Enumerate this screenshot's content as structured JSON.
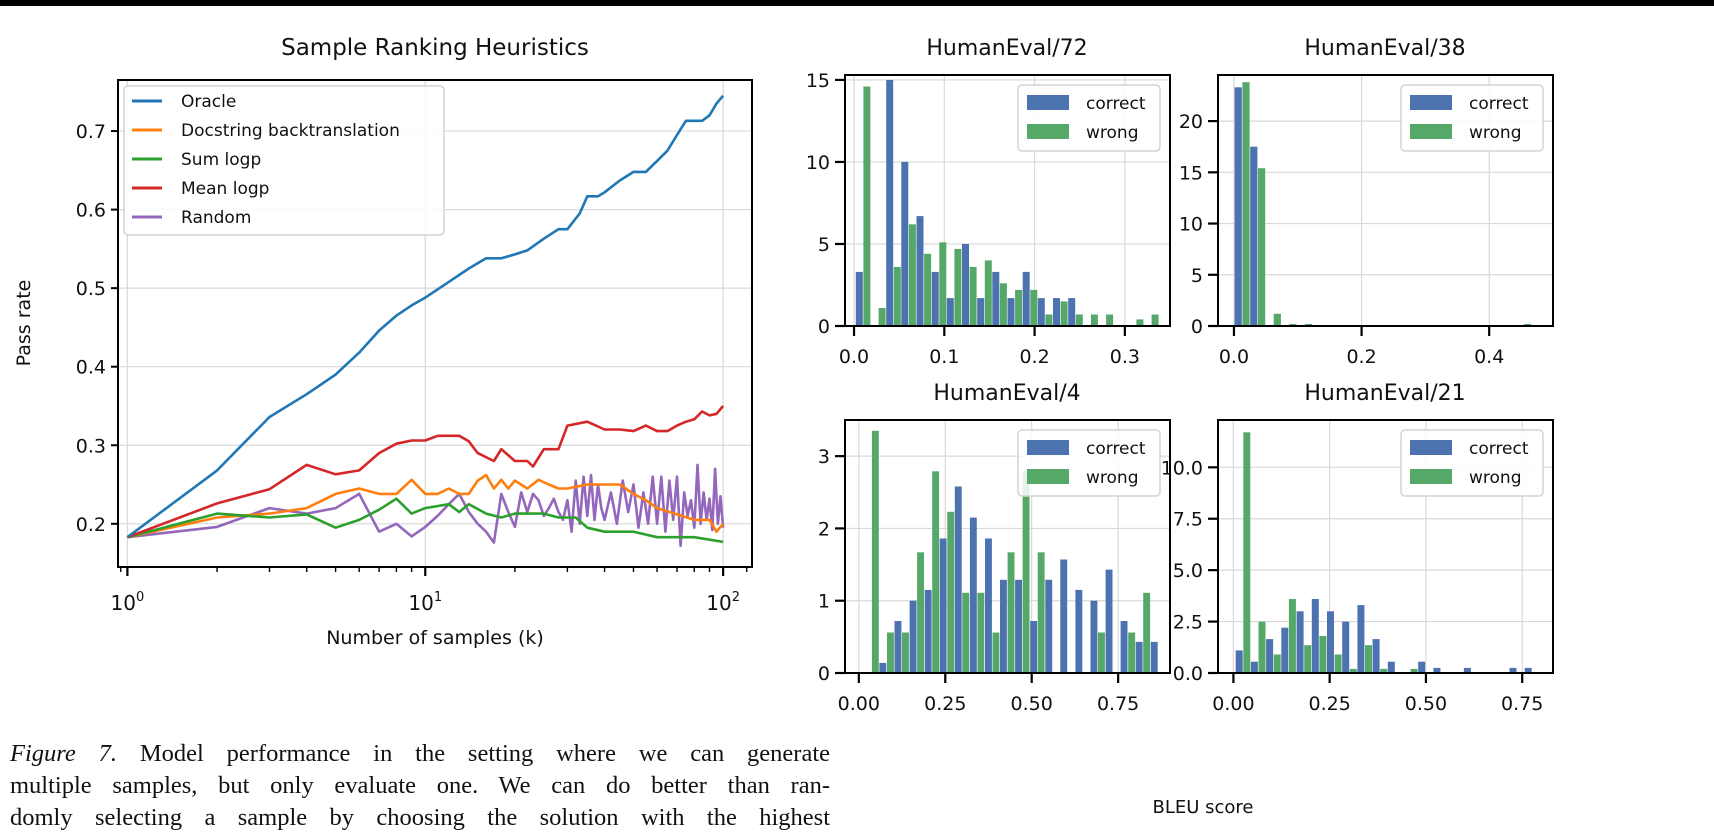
{
  "caption": {
    "label": "Figure 7.",
    "line1": "Model performance in the setting where we can generate",
    "line2": "multiple samples, but only evaluate one. We can do better than ran-",
    "line3": "domly selecting a sample by choosing the solution with the highest"
  },
  "shared_xlabel": "BLEU score",
  "colors": {
    "oracle": "#1f77b4",
    "docstring": "#ff7f0e",
    "sum_logp": "#2ca02c",
    "mean_logp": "#d62728",
    "random": "#9467bd",
    "correct": "#4c72b0",
    "wrong": "#55a868"
  },
  "chart_data": [
    {
      "id": "ranking",
      "type": "line",
      "title": "Sample Ranking Heuristics",
      "xlabel": "Number of samples (k)",
      "ylabel": "Pass rate",
      "xscale": "log",
      "xlim": [
        0.93,
        125
      ],
      "ylim": [
        0.145,
        0.765
      ],
      "xticks": [
        {
          "value": 1,
          "base": "10",
          "exp": "0"
        },
        {
          "value": 10,
          "base": "10",
          "exp": "1"
        },
        {
          "value": 100,
          "base": "10",
          "exp": "2"
        }
      ],
      "yticks": [
        0.2,
        0.3,
        0.4,
        0.5,
        0.6,
        0.7
      ],
      "ytick_labels": [
        "0.2",
        "0.3",
        "0.4",
        "0.5",
        "0.6",
        "0.7"
      ],
      "grid": true,
      "legend_position": "upper-left",
      "series": [
        {
          "name": "Oracle",
          "color_key": "oracle",
          "x": [
            1,
            2,
            3,
            4,
            5,
            6,
            7,
            8,
            9,
            10,
            12,
            14,
            16,
            18,
            20,
            22,
            25,
            28,
            30,
            33,
            35,
            38,
            40,
            45,
            50,
            55,
            60,
            65,
            70,
            75,
            80,
            85,
            90,
            95,
            100
          ],
          "y": [
            0.183,
            0.268,
            0.336,
            0.365,
            0.39,
            0.418,
            0.446,
            0.465,
            0.478,
            0.488,
            0.508,
            0.525,
            0.538,
            0.538,
            0.543,
            0.548,
            0.563,
            0.575,
            0.575,
            0.595,
            0.617,
            0.617,
            0.622,
            0.637,
            0.648,
            0.648,
            0.662,
            0.675,
            0.695,
            0.713,
            0.713,
            0.713,
            0.72,
            0.735,
            0.745
          ]
        },
        {
          "name": "Docstring backtranslation",
          "color_key": "docstring",
          "x": [
            1,
            2,
            3,
            4,
            5,
            6,
            7,
            8,
            9,
            10,
            11,
            12,
            13,
            14,
            15,
            16,
            17,
            18,
            19,
            20,
            22,
            24,
            26,
            28,
            30,
            35,
            40,
            45,
            50,
            55,
            60,
            70,
            80,
            90,
            95,
            100
          ],
          "y": [
            0.183,
            0.208,
            0.213,
            0.22,
            0.238,
            0.245,
            0.238,
            0.238,
            0.256,
            0.238,
            0.238,
            0.245,
            0.238,
            0.238,
            0.255,
            0.262,
            0.245,
            0.256,
            0.245,
            0.255,
            0.245,
            0.256,
            0.25,
            0.245,
            0.245,
            0.25,
            0.25,
            0.25,
            0.238,
            0.23,
            0.22,
            0.212,
            0.205,
            0.205,
            0.19,
            0.2
          ]
        },
        {
          "name": "Sum logp",
          "color_key": "sum_logp",
          "x": [
            1,
            2,
            3,
            4,
            5,
            6,
            7,
            8,
            9,
            10,
            12,
            13,
            14,
            16,
            18,
            20,
            25,
            28,
            30,
            32,
            35,
            40,
            50,
            60,
            80,
            100
          ],
          "y": [
            0.183,
            0.213,
            0.208,
            0.212,
            0.195,
            0.205,
            0.218,
            0.232,
            0.213,
            0.22,
            0.225,
            0.215,
            0.225,
            0.213,
            0.208,
            0.213,
            0.213,
            0.208,
            0.208,
            0.208,
            0.195,
            0.19,
            0.19,
            0.183,
            0.183,
            0.177
          ]
        },
        {
          "name": "Mean logp",
          "color_key": "mean_logp",
          "x": [
            1,
            2,
            3,
            4,
            5,
            6,
            7,
            8,
            9,
            10,
            11,
            12,
            13,
            14,
            15,
            17,
            18,
            20,
            22,
            23,
            25,
            28,
            30,
            35,
            40,
            45,
            50,
            55,
            60,
            65,
            70,
            75,
            80,
            85,
            90,
            95,
            100
          ],
          "y": [
            0.183,
            0.226,
            0.244,
            0.275,
            0.263,
            0.268,
            0.29,
            0.302,
            0.306,
            0.306,
            0.312,
            0.312,
            0.312,
            0.305,
            0.29,
            0.28,
            0.295,
            0.28,
            0.28,
            0.273,
            0.295,
            0.295,
            0.325,
            0.33,
            0.32,
            0.32,
            0.318,
            0.325,
            0.318,
            0.318,
            0.325,
            0.33,
            0.333,
            0.343,
            0.338,
            0.34,
            0.35
          ]
        },
        {
          "name": "Random",
          "color_key": "random",
          "x": [
            1,
            2,
            3,
            4,
            5,
            6,
            7,
            8,
            9,
            10,
            11,
            12,
            13,
            14,
            15,
            16,
            17,
            18,
            19,
            20,
            21,
            22,
            23,
            24,
            25,
            26,
            27,
            28,
            29,
            30,
            31,
            32,
            33,
            34,
            35,
            36,
            37,
            38,
            39,
            40,
            42,
            44,
            46,
            48,
            50,
            52,
            54,
            56,
            58,
            60,
            62,
            64,
            66,
            68,
            70,
            72,
            74,
            76,
            78,
            80,
            82,
            84,
            86,
            88,
            90,
            92,
            94,
            96,
            98,
            100
          ],
          "y": [
            0.183,
            0.196,
            0.22,
            0.213,
            0.22,
            0.238,
            0.19,
            0.2,
            0.184,
            0.196,
            0.21,
            0.225,
            0.238,
            0.215,
            0.2,
            0.19,
            0.176,
            0.238,
            0.215,
            0.196,
            0.24,
            0.215,
            0.238,
            0.23,
            0.21,
            0.22,
            0.232,
            0.215,
            0.205,
            0.23,
            0.19,
            0.255,
            0.2,
            0.26,
            0.21,
            0.262,
            0.205,
            0.25,
            0.22,
            0.205,
            0.24,
            0.2,
            0.255,
            0.215,
            0.25,
            0.195,
            0.24,
            0.2,
            0.26,
            0.2,
            0.26,
            0.19,
            0.255,
            0.205,
            0.26,
            0.172,
            0.24,
            0.21,
            0.23,
            0.195,
            0.275,
            0.2,
            0.24,
            0.205,
            0.232,
            0.192,
            0.27,
            0.2,
            0.235,
            0.195
          ]
        }
      ]
    },
    {
      "id": "he72",
      "type": "bar",
      "title": "HumanEval/72",
      "xlim": [
        -0.01,
        0.35
      ],
      "ylim": [
        0,
        15.3
      ],
      "xticks": [
        0.0,
        0.1,
        0.2,
        0.3
      ],
      "xtick_labels": [
        "0.0",
        "0.1",
        "0.2",
        "0.3"
      ],
      "yticks": [
        0,
        5,
        10,
        15
      ],
      "ytick_labels": [
        "0",
        "5",
        "10",
        "15"
      ],
      "bin_width": 0.0168,
      "bin_start": 0.002,
      "legend_position": "upper-right",
      "series": [
        {
          "name": "correct",
          "color_key": "correct",
          "values": [
            3.3,
            0,
            15.0,
            10.0,
            6.7,
            3.3,
            1.7,
            5.0,
            1.7,
            3.3,
            1.7,
            3.3,
            1.7,
            1.7,
            1.7,
            0,
            0,
            0,
            0,
            0
          ]
        },
        {
          "name": "wrong",
          "color_key": "wrong",
          "values": [
            14.6,
            1.1,
            3.6,
            6.2,
            4.4,
            5.1,
            4.7,
            3.6,
            4.0,
            2.6,
            2.2,
            2.2,
            0.7,
            1.5,
            0.7,
            0.7,
            0.7,
            0,
            0.4,
            0.7
          ]
        }
      ]
    },
    {
      "id": "he38",
      "type": "bar",
      "title": "HumanEval/38",
      "xlim": [
        -0.025,
        0.5
      ],
      "ylim": [
        0,
        24.5
      ],
      "xticks": [
        0.0,
        0.2,
        0.4
      ],
      "xtick_labels": [
        "0.0",
        "0.2",
        "0.4"
      ],
      "yticks": [
        0,
        5,
        10,
        15,
        20
      ],
      "ytick_labels": [
        "0",
        "5",
        "10",
        "15",
        "20"
      ],
      "bin_width": 0.0245,
      "bin_start": 0.001,
      "legend_position": "upper-right",
      "series": [
        {
          "name": "correct",
          "color_key": "correct",
          "values": [
            23.3,
            17.5,
            0,
            0,
            0,
            0,
            0,
            0,
            0,
            0,
            0,
            0,
            0,
            0,
            0,
            0,
            0,
            0,
            0,
            0
          ]
        },
        {
          "name": "wrong",
          "color_key": "wrong",
          "values": [
            23.8,
            15.4,
            1.2,
            0.2,
            0.2,
            0,
            0,
            0,
            0,
            0,
            0,
            0,
            0,
            0,
            0,
            0,
            0,
            0,
            0.2,
            0
          ]
        }
      ]
    },
    {
      "id": "he4",
      "type": "bar",
      "title": "HumanEval/4",
      "xlim": [
        -0.04,
        0.9
      ],
      "ylim": [
        0,
        3.5
      ],
      "xticks": [
        0.0,
        0.25,
        0.5,
        0.75
      ],
      "xtick_labels": [
        "0.00",
        "0.25",
        "0.50",
        "0.75"
      ],
      "yticks": [
        0,
        1,
        2,
        3
      ],
      "ytick_labels": [
        "0",
        "1",
        "2",
        "3"
      ],
      "bin_width": 0.0436,
      "bin_start": 0.016,
      "legend_position": "upper-right",
      "series": [
        {
          "name": "correct",
          "color_key": "correct",
          "values": [
            0,
            0.14,
            0.72,
            1.0,
            1.15,
            1.86,
            2.58,
            2.15,
            1.86,
            1.29,
            1.29,
            0.72,
            1.29,
            1.57,
            1.15,
            1.0,
            1.43,
            0.72,
            0.43,
            0.43
          ]
        },
        {
          "name": "wrong",
          "color_key": "wrong",
          "values": [
            3.35,
            0.56,
            0.56,
            1.67,
            2.79,
            2.23,
            1.11,
            1.11,
            0.56,
            1.67,
            2.79,
            1.67,
            0,
            0,
            0,
            0.56,
            0,
            0.56,
            1.11,
            0
          ]
        }
      ]
    },
    {
      "id": "he21",
      "type": "bar",
      "title": "HumanEval/21",
      "xlim": [
        -0.04,
        0.83
      ],
      "ylim": [
        0,
        12.3
      ],
      "xticks": [
        0.0,
        0.25,
        0.5,
        0.75
      ],
      "xtick_labels": [
        "0.00",
        "0.25",
        "0.50",
        "0.75"
      ],
      "yticks": [
        0.0,
        2.5,
        5.0,
        7.5,
        10.0
      ],
      "ytick_labels": [
        "0.0",
        "2.5",
        "5.0",
        "7.5",
        "10.0"
      ],
      "bin_width": 0.0395,
      "bin_start": 0.006,
      "legend_position": "upper-right",
      "series": [
        {
          "name": "correct",
          "color_key": "correct",
          "values": [
            1.1,
            0.55,
            1.65,
            2.2,
            3.0,
            3.6,
            3.0,
            2.5,
            3.3,
            1.65,
            0.55,
            0,
            0.55,
            0.25,
            0,
            0.25,
            0,
            0,
            0.25,
            0.25
          ]
        },
        {
          "name": "wrong",
          "color_key": "wrong",
          "values": [
            11.7,
            2.5,
            0.9,
            3.6,
            1.35,
            1.8,
            0.9,
            0.2,
            1.35,
            0.2,
            0,
            0.2,
            0,
            0,
            0,
            0,
            0,
            0,
            0,
            0
          ]
        }
      ]
    }
  ]
}
